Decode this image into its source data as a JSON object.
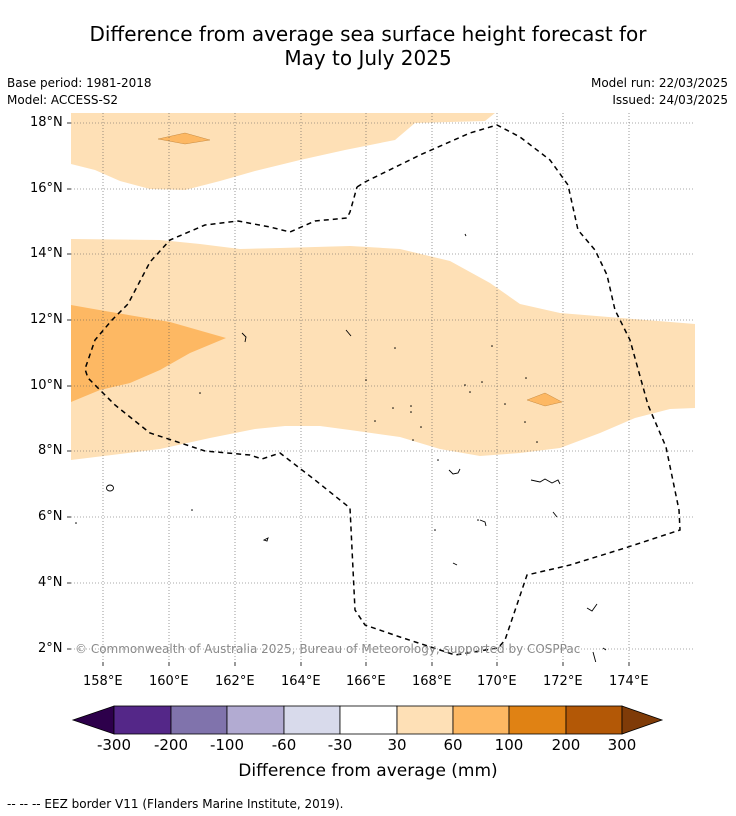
{
  "title_line1": "Difference from average sea surface height forecast for",
  "title_line2": "May to July 2025",
  "info": {
    "base_period": "Base period: 1981-2018",
    "model": "Model: ACCESS-S2",
    "model_run": "Model run: 22/03/2025",
    "issued": "Issued: 24/03/2025"
  },
  "axes": {
    "lat_ticks": [
      "18°N",
      "16°N",
      "14°N",
      "12°N",
      "10°N",
      "8°N",
      "6°N",
      "4°N",
      "2°N"
    ],
    "lon_ticks": [
      "158°E",
      "160°E",
      "162°E",
      "164°E",
      "166°E",
      "168°E",
      "170°E",
      "172°E",
      "174°E"
    ]
  },
  "colorbar": {
    "labels": [
      "-300",
      "-200",
      "-100",
      "-60",
      "-30",
      "30",
      "60",
      "100",
      "200",
      "300"
    ],
    "colors": [
      "#2d004b",
      "#542788",
      "#8073ac",
      "#b2abd2",
      "#d8daeb",
      "#ffffff",
      "#fee0b6",
      "#fdb863",
      "#e08214",
      "#b35806",
      "#7f3b08"
    ],
    "title": "Difference from average (mm)"
  },
  "copyright": "© Commonwealth of Australia 2025, Bureau of Meteorology, supported by COSPPac",
  "footer": "--  --  -- EEZ border V11 (Flanders Marine Institute, 2019).",
  "legend_colors": {
    "light": "#fee0b6",
    "medium": "#fdb863",
    "border": "#000000",
    "grid": "#555555"
  }
}
